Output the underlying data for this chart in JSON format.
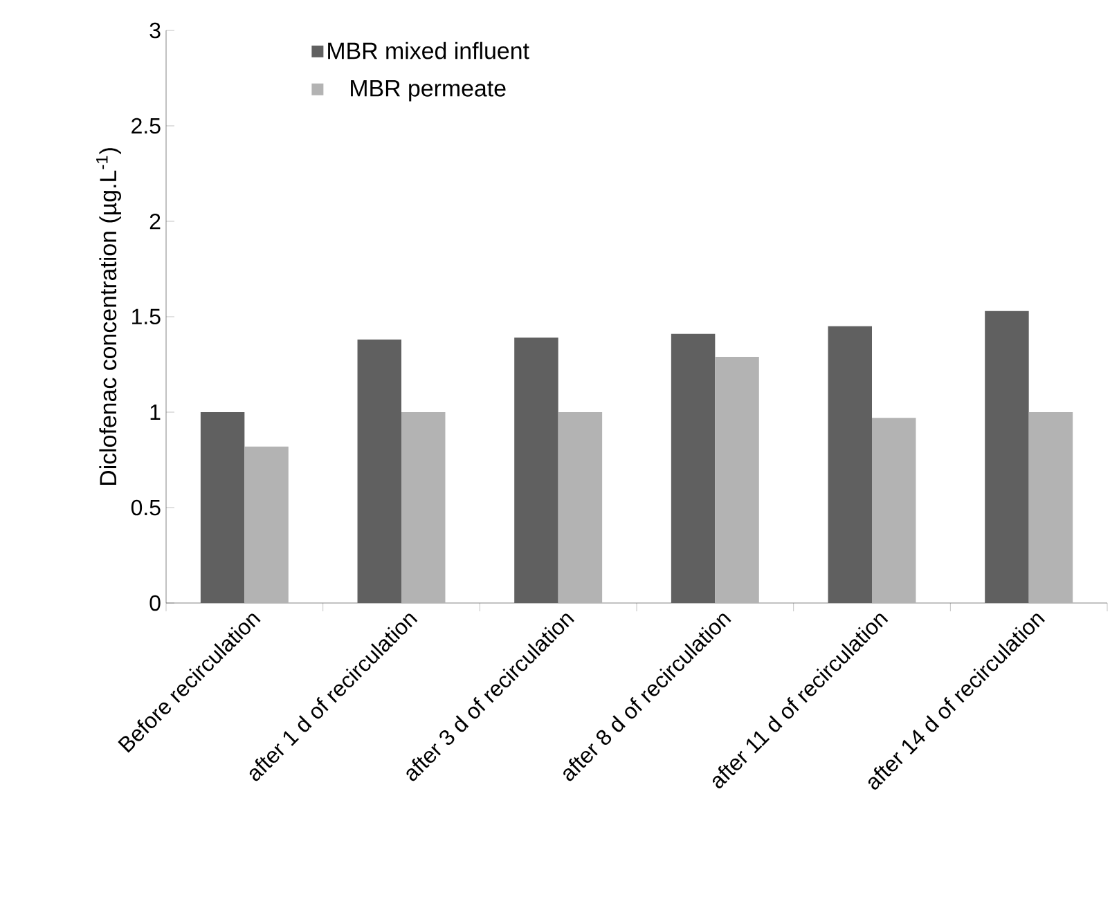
{
  "chart_data": {
    "type": "bar",
    "ylabel": "Diclofenac concentration (µg.L$^{-1}$)",
    "categories": [
      "Before recirculation",
      "after 1 d of recirculation",
      "after 3 d of recirculation",
      "after 8 d of recirculation",
      "after 11 d of recirculation",
      "after 14 d of recirculation"
    ],
    "series": [
      {
        "name": "MBR mixed influent",
        "color": "#606060",
        "values": [
          1.0,
          1.38,
          1.39,
          1.41,
          1.45,
          1.53
        ]
      },
      {
        "name": "MBR permeate",
        "color": "#b3b3b3",
        "values": [
          0.82,
          1.0,
          1.0,
          1.29,
          0.97,
          1.0
        ]
      }
    ],
    "ylim": [
      0,
      3
    ],
    "yticks": [
      0,
      0.5,
      1,
      1.5,
      2,
      2.5,
      3
    ],
    "legend": "top left",
    "grid": false
  }
}
